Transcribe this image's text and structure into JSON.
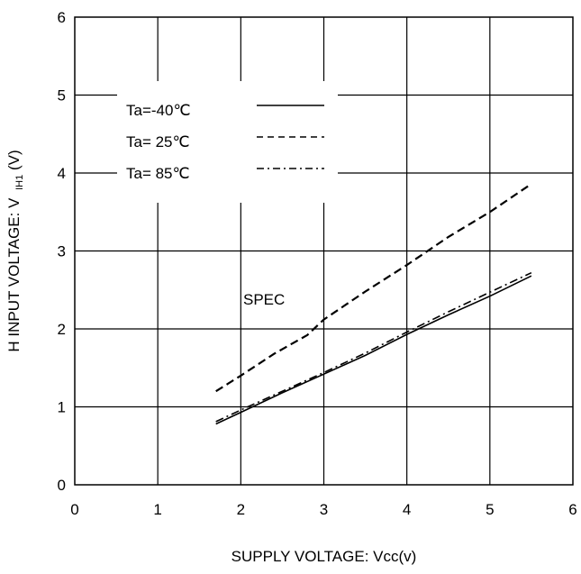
{
  "chart_data": {
    "type": "line",
    "xlabel": "SUPPLY VOLTAGE: Vcc(v)",
    "ylabel_main": "H INPUT VOLTAGE: V",
    "ylabel_sub": "IH1",
    "ylabel_unit": "(V)",
    "xlim": [
      0,
      6
    ],
    "ylim": [
      0,
      6
    ],
    "xticks": [
      "0",
      "1",
      "2",
      "3",
      "4",
      "5",
      "6"
    ],
    "yticks": [
      "0",
      "1",
      "2",
      "3",
      "4",
      "5",
      "6"
    ],
    "grid": true,
    "legend_position": "upper-left",
    "annotation": "SPEC",
    "series": [
      {
        "name": "Ta=-40℃",
        "style": "solid",
        "x": [
          1.7,
          2.0,
          2.5,
          3.0,
          3.5,
          4.0,
          4.5,
          5.0,
          5.5
        ],
        "y": [
          0.78,
          0.93,
          1.18,
          1.42,
          1.66,
          1.93,
          2.18,
          2.42,
          2.68
        ]
      },
      {
        "name": "Ta= 25℃",
        "style": "dashed",
        "x": [
          1.7,
          2.0,
          2.4,
          2.6,
          2.8,
          3.0,
          3.5,
          4.0,
          4.5,
          5.0,
          5.5
        ],
        "y": [
          1.2,
          1.4,
          1.68,
          1.8,
          1.92,
          2.12,
          2.48,
          2.82,
          3.18,
          3.5,
          3.86
        ]
      },
      {
        "name": "Ta= 85℃",
        "style": "dashdot",
        "x": [
          1.7,
          2.0,
          2.5,
          3.0,
          3.5,
          4.0,
          4.5,
          5.0,
          5.5
        ],
        "y": [
          0.81,
          0.96,
          1.2,
          1.44,
          1.69,
          1.96,
          2.22,
          2.47,
          2.72
        ]
      }
    ]
  }
}
